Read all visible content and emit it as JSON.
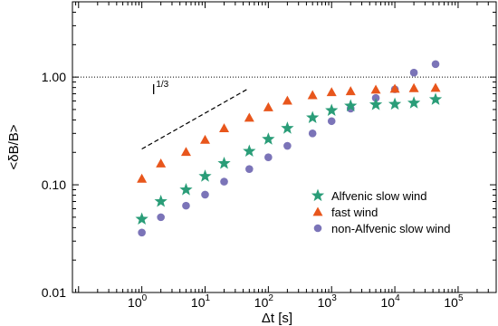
{
  "chart_data": {
    "type": "scatter",
    "xlabel": "Δt [s]",
    "ylabel": "<δB/B>",
    "xscale": "log",
    "yscale": "log",
    "xlim": [
      0.08,
      400000.0
    ],
    "ylim": [
      0.01,
      5.0
    ],
    "x_ticks": [
      {
        "value": 1,
        "base": "10",
        "exp": "0"
      },
      {
        "value": 10,
        "base": "10",
        "exp": "1"
      },
      {
        "value": 100,
        "base": "10",
        "exp": "2"
      },
      {
        "value": 1000,
        "base": "10",
        "exp": "3"
      },
      {
        "value": 10000,
        "base": "10",
        "exp": "4"
      },
      {
        "value": 100000,
        "base": "10",
        "exp": "5"
      }
    ],
    "y_ticks": [
      {
        "value": 0.01,
        "label": "0.01"
      },
      {
        "value": 0.1,
        "label": "0.10"
      },
      {
        "value": 1.0,
        "label": "1.00"
      }
    ],
    "reference_line": {
      "y": 1.0,
      "style": "dotted"
    },
    "slope_annotation": {
      "base": "l",
      "exponent": "1/3",
      "x": [
        1,
        48
      ],
      "y": [
        0.215,
        0.78
      ]
    },
    "legend_position": "lower-right",
    "series": [
      {
        "name": "Alfvenic slow wind",
        "marker": "star",
        "color": "#2a9d78",
        "x": [
          1,
          2,
          5,
          10,
          20,
          50,
          100,
          200,
          500,
          1000,
          2000,
          5000,
          10000,
          20000,
          44000
        ],
        "y": [
          0.048,
          0.07,
          0.09,
          0.12,
          0.158,
          0.205,
          0.265,
          0.335,
          0.42,
          0.49,
          0.54,
          0.555,
          0.56,
          0.575,
          0.62
        ]
      },
      {
        "name": "fast wind",
        "marker": "triangle",
        "color": "#e8561c",
        "x": [
          1,
          2,
          5,
          10,
          20,
          50,
          100,
          200,
          500,
          1000,
          2000,
          5000,
          10000,
          20000,
          44000
        ],
        "y": [
          0.114,
          0.158,
          0.202,
          0.262,
          0.335,
          0.42,
          0.525,
          0.605,
          0.68,
          0.725,
          0.74,
          0.765,
          0.78,
          0.79,
          0.795
        ]
      },
      {
        "name": "non-Alfvenic slow wind",
        "marker": "circle",
        "color": "#7b74b8",
        "x": [
          1,
          2,
          5,
          10,
          20,
          50,
          100,
          200,
          500,
          1000,
          2000,
          5000,
          10000,
          20000,
          44000
        ],
        "y": [
          0.036,
          0.05,
          0.064,
          0.081,
          0.107,
          0.14,
          0.18,
          0.23,
          0.3,
          0.39,
          0.51,
          0.64,
          0.77,
          1.1,
          1.32
        ]
      }
    ]
  }
}
